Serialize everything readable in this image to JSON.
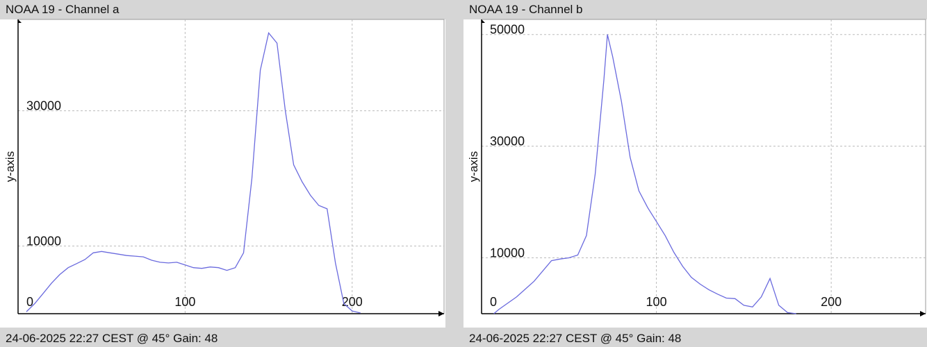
{
  "chart_data": [
    {
      "type": "line",
      "title": "NOAA 19 - Channel a",
      "ylabel": "y-axis",
      "footer": "24-06-2025 22:27 CEST @ 45° Gain: 48",
      "color": "#6a6ade",
      "x": [
        5,
        10,
        15,
        20,
        25,
        30,
        35,
        40,
        45,
        50,
        55,
        60,
        65,
        70,
        75,
        80,
        85,
        90,
        95,
        100,
        105,
        110,
        115,
        120,
        125,
        130,
        135,
        140,
        145,
        150,
        155,
        160,
        165,
        170,
        175,
        180,
        185,
        190,
        195,
        200,
        205
      ],
      "values": [
        300,
        1500,
        3000,
        4500,
        5800,
        6800,
        7400,
        8000,
        9000,
        9200,
        9000,
        8800,
        8600,
        8500,
        8400,
        7900,
        7600,
        7500,
        7600,
        7200,
        6800,
        6700,
        6900,
        6800,
        6400,
        6800,
        9000,
        20000,
        36000,
        41500,
        40000,
        30000,
        22000,
        19500,
        17500,
        16000,
        15500,
        7500,
        1500,
        400,
        100
      ],
      "xlim": [
        0,
        255
      ],
      "ylim": [
        0,
        43500
      ],
      "xticks": [
        0,
        100,
        200
      ],
      "yticks": [
        10000,
        30000
      ],
      "grid": true
    },
    {
      "type": "line",
      "title": "NOAA 19 - Channel b",
      "ylabel": "y-axis",
      "footer": "24-06-2025 22:27 CEST @ 45° Gain: 48",
      "color": "#6a6ade",
      "x": [
        7,
        10,
        20,
        30,
        40,
        45,
        50,
        55,
        60,
        65,
        70,
        72,
        75,
        80,
        85,
        90,
        95,
        100,
        105,
        110,
        115,
        120,
        125,
        130,
        135,
        140,
        145,
        150,
        155,
        160,
        165,
        170,
        175,
        180
      ],
      "values": [
        0,
        800,
        3000,
        5800,
        9500,
        9800,
        10000,
        10500,
        14000,
        25000,
        42000,
        50000,
        46000,
        38000,
        28000,
        22000,
        19000,
        16500,
        14000,
        11000,
        8500,
        6500,
        5300,
        4300,
        3500,
        2800,
        2700,
        1500,
        1200,
        3000,
        6300,
        1500,
        200,
        0
      ],
      "xlim": [
        0,
        254
      ],
      "ylim": [
        0,
        52700
      ],
      "xticks": [
        0,
        100,
        200
      ],
      "yticks": [
        10000,
        30000,
        50000
      ],
      "grid": true
    }
  ]
}
